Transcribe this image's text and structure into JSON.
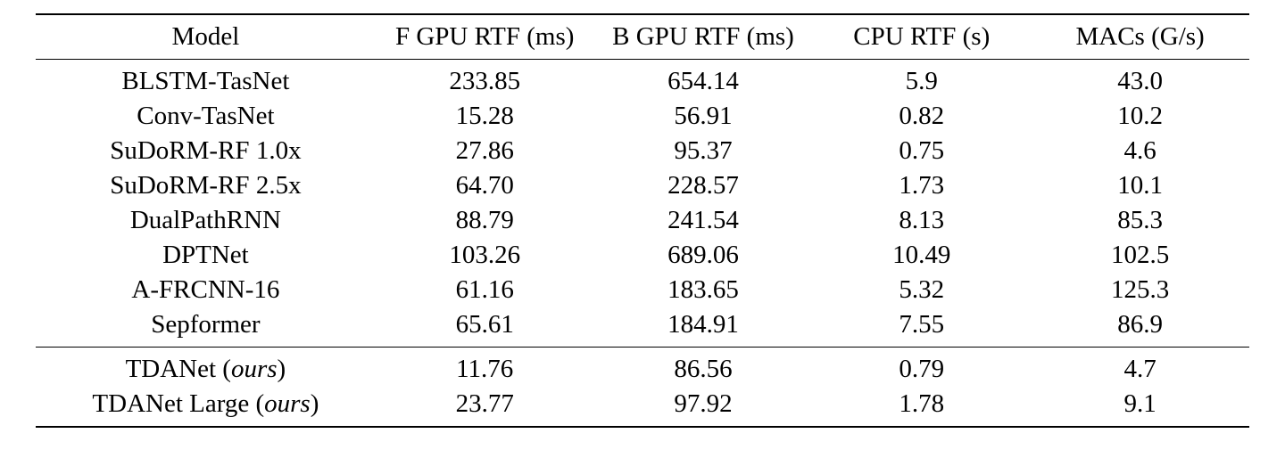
{
  "table": {
    "type": "table",
    "background_color": "#ffffff",
    "text_color": "#000000",
    "font_family": "Times New Roman",
    "font_size": 29,
    "border_color": "#000000",
    "top_border_width": 2,
    "header_border_width": 1.5,
    "section_border_width": 1.5,
    "bottom_border_width": 2,
    "columns": [
      {
        "label": "Model",
        "width_pct": 28,
        "align": "center"
      },
      {
        "label": "F GPU RTF (ms)",
        "width_pct": 18,
        "align": "center"
      },
      {
        "label": "B GPU RTF (ms)",
        "width_pct": 18,
        "align": "center"
      },
      {
        "label": "CPU RTF (s)",
        "width_pct": 18,
        "align": "center"
      },
      {
        "label": "MACs (G/s)",
        "width_pct": 18,
        "align": "center"
      }
    ],
    "group1": [
      {
        "model": "BLSTM-TasNet",
        "f_gpu_rtf": "233.85",
        "b_gpu_rtf": "654.14",
        "cpu_rtf": "5.9",
        "macs": "43.0"
      },
      {
        "model": "Conv-TasNet",
        "f_gpu_rtf": "15.28",
        "b_gpu_rtf": "56.91",
        "cpu_rtf": "0.82",
        "macs": "10.2"
      },
      {
        "model": "SuDoRM-RF 1.0x",
        "f_gpu_rtf": "27.86",
        "b_gpu_rtf": "95.37",
        "cpu_rtf": "0.75",
        "macs": "4.6"
      },
      {
        "model": "SuDoRM-RF 2.5x",
        "f_gpu_rtf": "64.70",
        "b_gpu_rtf": "228.57",
        "cpu_rtf": "1.73",
        "macs": "10.1"
      },
      {
        "model": "DualPathRNN",
        "f_gpu_rtf": "88.79",
        "b_gpu_rtf": "241.54",
        "cpu_rtf": "8.13",
        "macs": "85.3"
      },
      {
        "model": "DPTNet",
        "f_gpu_rtf": "103.26",
        "b_gpu_rtf": "689.06",
        "cpu_rtf": "10.49",
        "macs": "102.5"
      },
      {
        "model": "A-FRCNN-16",
        "f_gpu_rtf": "61.16",
        "b_gpu_rtf": "183.65",
        "cpu_rtf": "5.32",
        "macs": "125.3"
      },
      {
        "model": "Sepformer",
        "f_gpu_rtf": "65.61",
        "b_gpu_rtf": "184.91",
        "cpu_rtf": "7.55",
        "macs": "86.9"
      }
    ],
    "group2": [
      {
        "model": "TDANet",
        "ours": "ours",
        "f_gpu_rtf": "11.76",
        "b_gpu_rtf": "86.56",
        "cpu_rtf": "0.79",
        "macs": "4.7"
      },
      {
        "model": "TDANet Large",
        "ours": "ours",
        "f_gpu_rtf": "23.77",
        "b_gpu_rtf": "97.92",
        "cpu_rtf": "1.78",
        "macs": "9.1"
      }
    ]
  }
}
